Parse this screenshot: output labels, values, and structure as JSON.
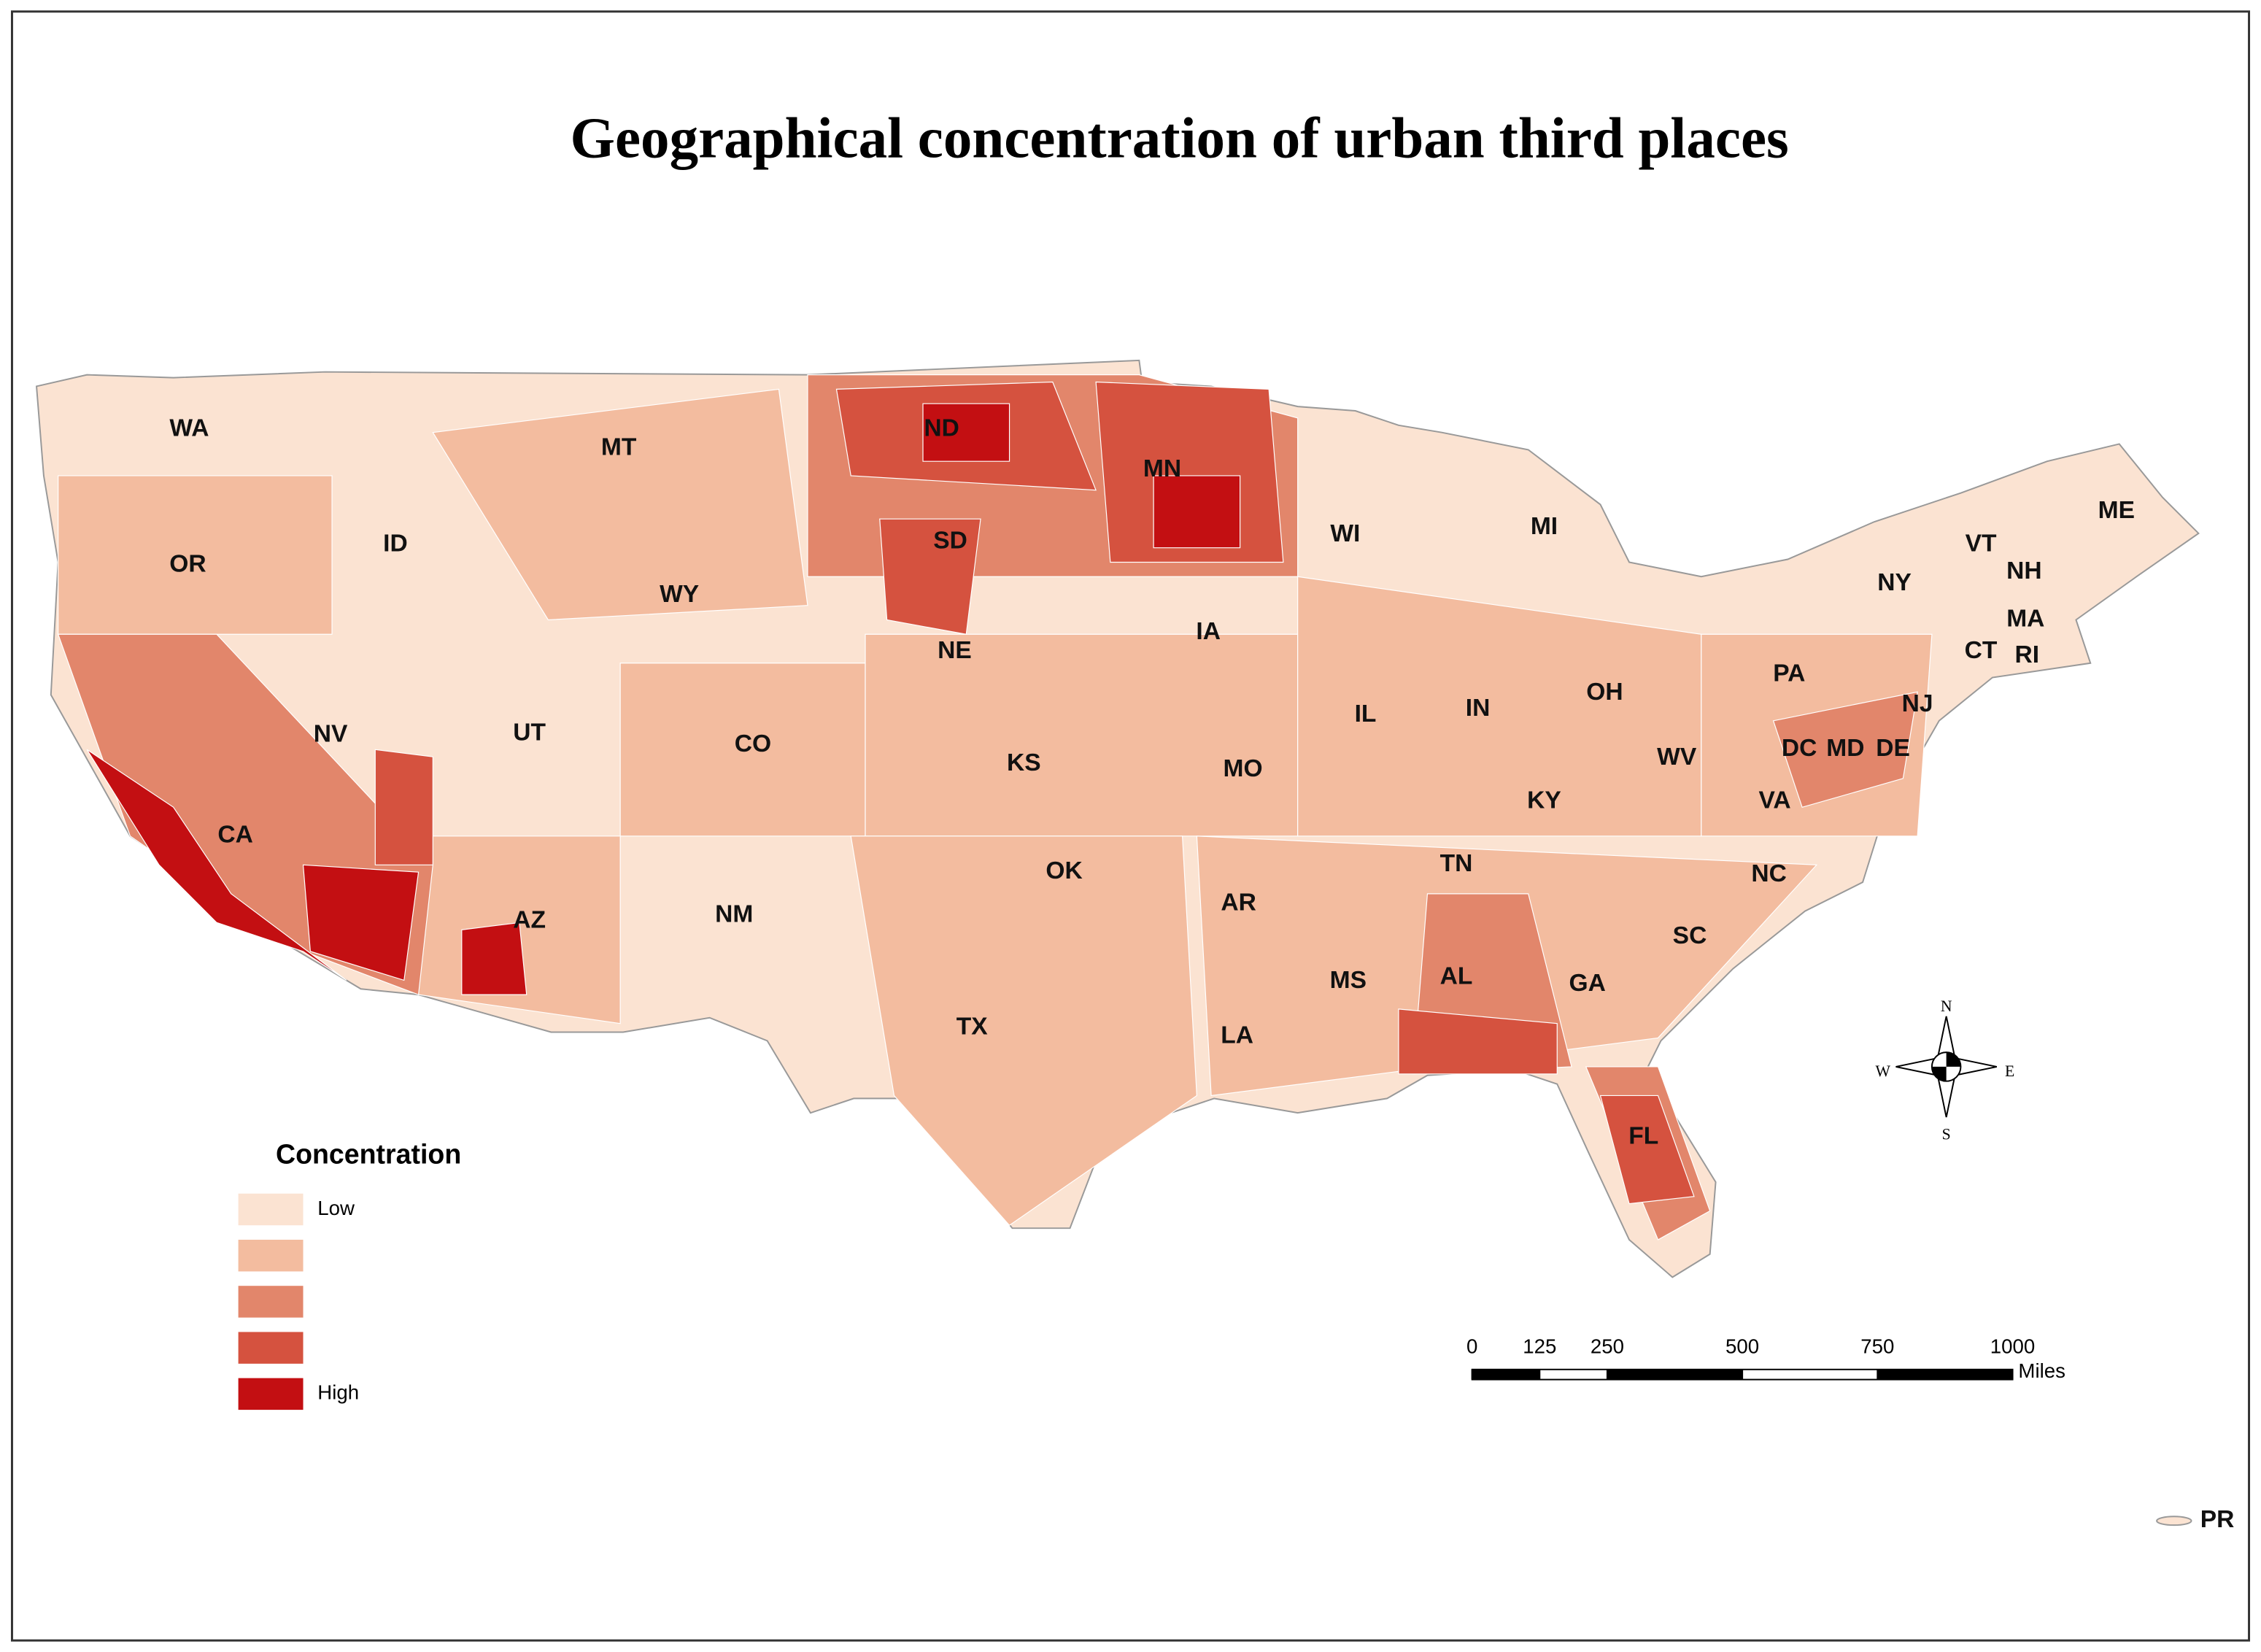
{
  "title": "Geographical concentration of urban third places",
  "state_labels": [
    "WA",
    "MT",
    "ND",
    "MN",
    "ME",
    "OR",
    "ID",
    "WY",
    "SD",
    "WI",
    "MI",
    "VT",
    "NH",
    "NY",
    "MA",
    "IA",
    "NE",
    "CT",
    "RI",
    "PA",
    "NV",
    "UT",
    "CO",
    "IL",
    "IN",
    "OH",
    "NJ",
    "DC",
    "MD",
    "DE",
    "KS",
    "MO",
    "WV",
    "KY",
    "VA",
    "CA",
    "TN",
    "NC",
    "OK",
    "AZ",
    "NM",
    "AR",
    "SC",
    "AL",
    "GA",
    "MS",
    "TX",
    "LA",
    "FL",
    "PR"
  ],
  "legend": {
    "title": "Concentration",
    "items": [
      {
        "label": "Low",
        "color": "#fbe3d2"
      },
      {
        "color": "#f3bc9f"
      },
      {
        "color": "#e2866b"
      },
      {
        "color": "#d5523f"
      },
      {
        "label": "High",
        "color": "#c30f12"
      }
    ]
  },
  "scale_bar": {
    "ticks": [
      0,
      125,
      250,
      500,
      750,
      1000
    ],
    "unit": "Miles"
  },
  "compass": {
    "north": "N",
    "south": "S",
    "west": "W",
    "east": "E"
  }
}
